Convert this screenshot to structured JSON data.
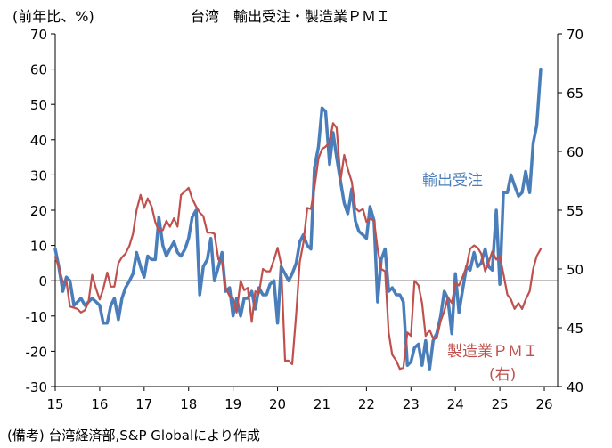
{
  "chart_data": {
    "type": "line",
    "title": "台湾　輸出受注・製造業ＰＭＩ",
    "left_axis_unit": "(前年比、%)",
    "left_axis": {
      "min": -30,
      "max": 70,
      "step": 10,
      "ticks": [
        "-30",
        "-20",
        "-10",
        "0",
        "10",
        "20",
        "30",
        "40",
        "50",
        "60",
        "70"
      ]
    },
    "right_axis": {
      "min": 40,
      "max": 70,
      "step": 5,
      "ticks": [
        "40",
        "45",
        "50",
        "55",
        "60",
        "65",
        "70"
      ]
    },
    "x_axis": {
      "min": 2015,
      "max": 2026.3,
      "ticks": [
        "15",
        "16",
        "17",
        "18",
        "19",
        "20",
        "21",
        "22",
        "23",
        "24",
        "25",
        "26"
      ],
      "tick_years": [
        2015,
        2016,
        2017,
        2018,
        2019,
        2020,
        2021,
        2022,
        2023,
        2024,
        2025,
        2026
      ]
    },
    "grid": false,
    "series": [
      {
        "name": "輸出受注",
        "axis": "left",
        "color": "#4a7ebb",
        "label_line1": "輸出受注",
        "points": [
          [
            2015.0,
            9
          ],
          [
            2015.08,
            4
          ],
          [
            2015.17,
            -3
          ],
          [
            2015.25,
            1
          ],
          [
            2015.33,
            0
          ],
          [
            2015.42,
            -7
          ],
          [
            2015.5,
            -6
          ],
          [
            2015.58,
            -5
          ],
          [
            2015.67,
            -7
          ],
          [
            2015.75,
            -6
          ],
          [
            2015.83,
            -5
          ],
          [
            2015.92,
            -6
          ],
          [
            2016.0,
            -7
          ],
          [
            2016.08,
            -12
          ],
          [
            2016.17,
            -12
          ],
          [
            2016.25,
            -7
          ],
          [
            2016.33,
            -5
          ],
          [
            2016.42,
            -11
          ],
          [
            2016.5,
            -5
          ],
          [
            2016.58,
            -2
          ],
          [
            2016.67,
            0
          ],
          [
            2016.75,
            2
          ],
          [
            2016.83,
            8
          ],
          [
            2016.92,
            4
          ],
          [
            2017.0,
            1
          ],
          [
            2017.08,
            7
          ],
          [
            2017.17,
            6
          ],
          [
            2017.25,
            6
          ],
          [
            2017.33,
            18
          ],
          [
            2017.42,
            10
          ],
          [
            2017.5,
            7
          ],
          [
            2017.58,
            9
          ],
          [
            2017.67,
            11
          ],
          [
            2017.75,
            8
          ],
          [
            2017.83,
            7
          ],
          [
            2017.92,
            9
          ],
          [
            2018.0,
            12
          ],
          [
            2018.08,
            18
          ],
          [
            2018.17,
            20
          ],
          [
            2018.25,
            -4
          ],
          [
            2018.33,
            4
          ],
          [
            2018.42,
            6
          ],
          [
            2018.5,
            12
          ],
          [
            2018.58,
            0
          ],
          [
            2018.67,
            4
          ],
          [
            2018.75,
            8
          ],
          [
            2018.83,
            -3
          ],
          [
            2018.92,
            -2
          ],
          [
            2019.0,
            -10
          ],
          [
            2019.08,
            -5
          ],
          [
            2019.17,
            -10
          ],
          [
            2019.25,
            -5
          ],
          [
            2019.33,
            -5
          ],
          [
            2019.42,
            -3
          ],
          [
            2019.5,
            -8
          ],
          [
            2019.58,
            -2
          ],
          [
            2019.67,
            -4
          ],
          [
            2019.75,
            -4
          ],
          [
            2019.83,
            -1
          ],
          [
            2019.92,
            0
          ],
          [
            2020.0,
            -12
          ],
          [
            2020.08,
            4
          ],
          [
            2020.17,
            2
          ],
          [
            2020.25,
            0
          ],
          [
            2020.33,
            2
          ],
          [
            2020.42,
            5
          ],
          [
            2020.5,
            11
          ],
          [
            2020.58,
            13
          ],
          [
            2020.67,
            10
          ],
          [
            2020.75,
            9
          ],
          [
            2020.83,
            32
          ],
          [
            2020.92,
            38
          ],
          [
            2021.0,
            49
          ],
          [
            2021.08,
            48
          ],
          [
            2021.17,
            33
          ],
          [
            2021.25,
            42
          ],
          [
            2021.33,
            35
          ],
          [
            2021.42,
            28
          ],
          [
            2021.5,
            22
          ],
          [
            2021.58,
            19
          ],
          [
            2021.67,
            26
          ],
          [
            2021.75,
            17
          ],
          [
            2021.83,
            14
          ],
          [
            2021.92,
            13
          ],
          [
            2022.0,
            12
          ],
          [
            2022.08,
            21
          ],
          [
            2022.17,
            17
          ],
          [
            2022.25,
            -6
          ],
          [
            2022.33,
            6
          ],
          [
            2022.42,
            9
          ],
          [
            2022.5,
            -3
          ],
          [
            2022.58,
            -2
          ],
          [
            2022.67,
            -4
          ],
          [
            2022.75,
            -4
          ],
          [
            2022.83,
            -6
          ],
          [
            2022.92,
            -24
          ],
          [
            2023.0,
            -23
          ],
          [
            2023.08,
            -19
          ],
          [
            2023.17,
            -18
          ],
          [
            2023.25,
            -24
          ],
          [
            2023.33,
            -17
          ],
          [
            2023.42,
            -25
          ],
          [
            2023.5,
            -17
          ],
          [
            2023.58,
            -15
          ],
          [
            2023.67,
            -10
          ],
          [
            2023.75,
            -3
          ],
          [
            2023.83,
            -5
          ],
          [
            2023.92,
            -15
          ],
          [
            2024.0,
            2
          ],
          [
            2024.08,
            -9
          ],
          [
            2024.17,
            -2
          ],
          [
            2024.25,
            4
          ],
          [
            2024.33,
            3
          ],
          [
            2024.42,
            8
          ],
          [
            2024.5,
            4
          ],
          [
            2024.58,
            5
          ],
          [
            2024.67,
            9
          ],
          [
            2024.75,
            4
          ],
          [
            2024.83,
            3
          ],
          [
            2024.92,
            20
          ],
          [
            2025.0,
            -1
          ],
          [
            2025.08,
            25
          ],
          [
            2025.17,
            25
          ],
          [
            2025.25,
            30
          ],
          [
            2025.33,
            27
          ],
          [
            2025.42,
            24
          ],
          [
            2025.5,
            25
          ],
          [
            2025.58,
            31
          ],
          [
            2025.67,
            25
          ],
          [
            2025.75,
            39
          ],
          [
            2025.83,
            44
          ],
          [
            2025.92,
            60
          ]
        ]
      },
      {
        "name": "製造業ＰＭＩ（右）",
        "axis": "right",
        "color": "#c0504d",
        "label_line1": "製造業ＰＭＩ",
        "label_line2": "(右)",
        "points": [
          [
            2015.0,
            51.0
          ],
          [
            2015.08,
            50.2
          ],
          [
            2015.17,
            48.9
          ],
          [
            2015.25,
            49.0
          ],
          [
            2015.33,
            46.8
          ],
          [
            2015.42,
            46.7
          ],
          [
            2015.5,
            46.6
          ],
          [
            2015.58,
            46.3
          ],
          [
            2015.67,
            46.5
          ],
          [
            2015.75,
            47.2
          ],
          [
            2015.83,
            49.5
          ],
          [
            2015.92,
            48.3
          ],
          [
            2016.0,
            47.4
          ],
          [
            2016.08,
            48.3
          ],
          [
            2016.17,
            49.7
          ],
          [
            2016.25,
            48.5
          ],
          [
            2016.33,
            48.5
          ],
          [
            2016.42,
            50.5
          ],
          [
            2016.5,
            51.0
          ],
          [
            2016.58,
            51.3
          ],
          [
            2016.67,
            52.0
          ],
          [
            2016.75,
            53.0
          ],
          [
            2016.83,
            55.0
          ],
          [
            2016.92,
            56.3
          ],
          [
            2017.0,
            55.2
          ],
          [
            2017.08,
            56.0
          ],
          [
            2017.17,
            55.3
          ],
          [
            2017.25,
            54.0
          ],
          [
            2017.33,
            53.2
          ],
          [
            2017.42,
            53.3
          ],
          [
            2017.5,
            54.1
          ],
          [
            2017.58,
            53.6
          ],
          [
            2017.67,
            54.3
          ],
          [
            2017.75,
            53.6
          ],
          [
            2017.83,
            56.3
          ],
          [
            2017.92,
            56.6
          ],
          [
            2018.0,
            56.9
          ],
          [
            2018.08,
            56.0
          ],
          [
            2018.17,
            55.3
          ],
          [
            2018.25,
            54.8
          ],
          [
            2018.33,
            54.5
          ],
          [
            2018.42,
            53.1
          ],
          [
            2018.5,
            53.1
          ],
          [
            2018.58,
            53.0
          ],
          [
            2018.67,
            50.8
          ],
          [
            2018.75,
            50.6
          ],
          [
            2018.83,
            48.4
          ],
          [
            2018.92,
            47.7
          ],
          [
            2019.0,
            47.5
          ],
          [
            2019.08,
            46.3
          ],
          [
            2019.17,
            49.0
          ],
          [
            2019.25,
            48.2
          ],
          [
            2019.33,
            48.4
          ],
          [
            2019.42,
            45.5
          ],
          [
            2019.5,
            48.1
          ],
          [
            2019.58,
            47.9
          ],
          [
            2019.67,
            50.0
          ],
          [
            2019.75,
            49.8
          ],
          [
            2019.83,
            49.8
          ],
          [
            2019.92,
            50.8
          ],
          [
            2020.0,
            51.8
          ],
          [
            2020.08,
            50.4
          ],
          [
            2020.17,
            42.2
          ],
          [
            2020.25,
            42.2
          ],
          [
            2020.33,
            41.9
          ],
          [
            2020.42,
            46.2
          ],
          [
            2020.5,
            50.6
          ],
          [
            2020.58,
            52.2
          ],
          [
            2020.67,
            55.2
          ],
          [
            2020.75,
            55.1
          ],
          [
            2020.83,
            56.9
          ],
          [
            2020.92,
            59.4
          ],
          [
            2021.0,
            60.2
          ],
          [
            2021.08,
            60.4
          ],
          [
            2021.17,
            60.8
          ],
          [
            2021.25,
            62.4
          ],
          [
            2021.33,
            62.0
          ],
          [
            2021.42,
            57.6
          ],
          [
            2021.5,
            59.7
          ],
          [
            2021.58,
            58.5
          ],
          [
            2021.67,
            57.4
          ],
          [
            2021.75,
            55.2
          ],
          [
            2021.83,
            54.9
          ],
          [
            2021.92,
            55.1
          ],
          [
            2022.0,
            54.0
          ],
          [
            2022.08,
            54.3
          ],
          [
            2022.17,
            54.1
          ],
          [
            2022.25,
            51.7
          ],
          [
            2022.33,
            50.0
          ],
          [
            2022.42,
            49.8
          ],
          [
            2022.5,
            44.6
          ],
          [
            2022.58,
            42.7
          ],
          [
            2022.67,
            42.2
          ],
          [
            2022.75,
            41.5
          ],
          [
            2022.83,
            41.6
          ],
          [
            2022.92,
            44.6
          ],
          [
            2023.0,
            44.3
          ],
          [
            2023.08,
            49.0
          ],
          [
            2023.17,
            48.6
          ],
          [
            2023.25,
            47.1
          ],
          [
            2023.33,
            44.3
          ],
          [
            2023.42,
            44.8
          ],
          [
            2023.5,
            44.1
          ],
          [
            2023.58,
            44.1
          ],
          [
            2023.67,
            45.6
          ],
          [
            2023.75,
            46.4
          ],
          [
            2023.83,
            47.6
          ],
          [
            2023.92,
            47.1
          ],
          [
            2024.0,
            48.8
          ],
          [
            2024.08,
            48.6
          ],
          [
            2024.17,
            49.4
          ],
          [
            2024.25,
            50.2
          ],
          [
            2024.33,
            51.7
          ],
          [
            2024.42,
            52.0
          ],
          [
            2024.5,
            51.8
          ],
          [
            2024.58,
            51.3
          ],
          [
            2024.67,
            49.8
          ],
          [
            2024.75,
            50.6
          ],
          [
            2024.83,
            51.5
          ],
          [
            2024.92,
            50.8
          ],
          [
            2025.0,
            51.1
          ],
          [
            2025.08,
            49.6
          ],
          [
            2025.17,
            47.8
          ],
          [
            2025.25,
            47.4
          ],
          [
            2025.33,
            46.6
          ],
          [
            2025.42,
            47.1
          ],
          [
            2025.5,
            46.6
          ],
          [
            2025.58,
            47.4
          ],
          [
            2025.67,
            48.1
          ],
          [
            2025.75,
            50.0
          ],
          [
            2025.83,
            51.1
          ],
          [
            2025.92,
            51.7
          ]
        ]
      }
    ]
  },
  "footnote": "(備考) 台湾経済部,S&P Globalにより作成"
}
